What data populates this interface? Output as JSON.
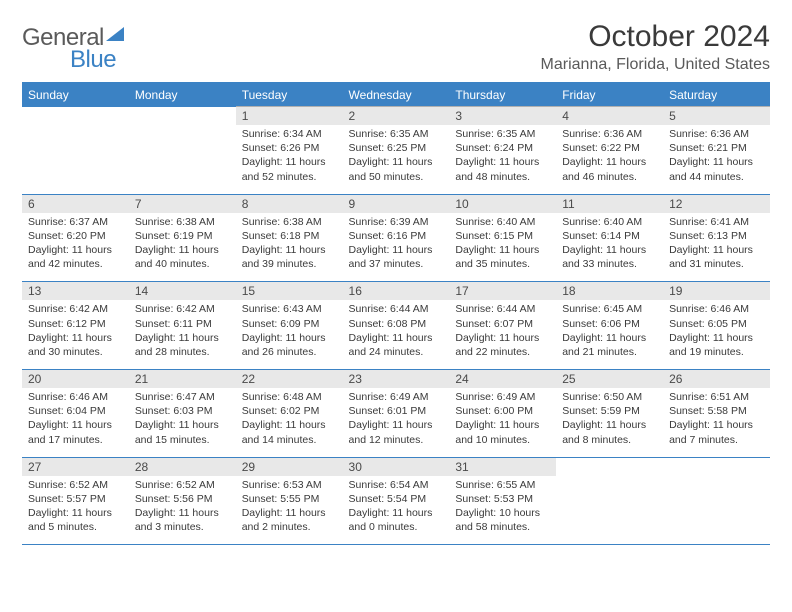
{
  "logo": {
    "text1": "General",
    "text2": "Blue"
  },
  "title": "October 2024",
  "location": "Marianna, Florida, United States",
  "colors": {
    "header_bg": "#3b82c4",
    "header_text": "#ffffff",
    "daynum_bg": "#e8e8e8",
    "border": "#3b82c4"
  },
  "daynames": [
    "Sunday",
    "Monday",
    "Tuesday",
    "Wednesday",
    "Thursday",
    "Friday",
    "Saturday"
  ],
  "weeks": [
    {
      "nums": [
        "",
        "",
        "1",
        "2",
        "3",
        "4",
        "5"
      ],
      "cells": [
        null,
        null,
        {
          "sunrise": "Sunrise: 6:34 AM",
          "sunset": "Sunset: 6:26 PM",
          "daylight": "Daylight: 11 hours and 52 minutes."
        },
        {
          "sunrise": "Sunrise: 6:35 AM",
          "sunset": "Sunset: 6:25 PM",
          "daylight": "Daylight: 11 hours and 50 minutes."
        },
        {
          "sunrise": "Sunrise: 6:35 AM",
          "sunset": "Sunset: 6:24 PM",
          "daylight": "Daylight: 11 hours and 48 minutes."
        },
        {
          "sunrise": "Sunrise: 6:36 AM",
          "sunset": "Sunset: 6:22 PM",
          "daylight": "Daylight: 11 hours and 46 minutes."
        },
        {
          "sunrise": "Sunrise: 6:36 AM",
          "sunset": "Sunset: 6:21 PM",
          "daylight": "Daylight: 11 hours and 44 minutes."
        }
      ]
    },
    {
      "nums": [
        "6",
        "7",
        "8",
        "9",
        "10",
        "11",
        "12"
      ],
      "cells": [
        {
          "sunrise": "Sunrise: 6:37 AM",
          "sunset": "Sunset: 6:20 PM",
          "daylight": "Daylight: 11 hours and 42 minutes."
        },
        {
          "sunrise": "Sunrise: 6:38 AM",
          "sunset": "Sunset: 6:19 PM",
          "daylight": "Daylight: 11 hours and 40 minutes."
        },
        {
          "sunrise": "Sunrise: 6:38 AM",
          "sunset": "Sunset: 6:18 PM",
          "daylight": "Daylight: 11 hours and 39 minutes."
        },
        {
          "sunrise": "Sunrise: 6:39 AM",
          "sunset": "Sunset: 6:16 PM",
          "daylight": "Daylight: 11 hours and 37 minutes."
        },
        {
          "sunrise": "Sunrise: 6:40 AM",
          "sunset": "Sunset: 6:15 PM",
          "daylight": "Daylight: 11 hours and 35 minutes."
        },
        {
          "sunrise": "Sunrise: 6:40 AM",
          "sunset": "Sunset: 6:14 PM",
          "daylight": "Daylight: 11 hours and 33 minutes."
        },
        {
          "sunrise": "Sunrise: 6:41 AM",
          "sunset": "Sunset: 6:13 PM",
          "daylight": "Daylight: 11 hours and 31 minutes."
        }
      ]
    },
    {
      "nums": [
        "13",
        "14",
        "15",
        "16",
        "17",
        "18",
        "19"
      ],
      "cells": [
        {
          "sunrise": "Sunrise: 6:42 AM",
          "sunset": "Sunset: 6:12 PM",
          "daylight": "Daylight: 11 hours and 30 minutes."
        },
        {
          "sunrise": "Sunrise: 6:42 AM",
          "sunset": "Sunset: 6:11 PM",
          "daylight": "Daylight: 11 hours and 28 minutes."
        },
        {
          "sunrise": "Sunrise: 6:43 AM",
          "sunset": "Sunset: 6:09 PM",
          "daylight": "Daylight: 11 hours and 26 minutes."
        },
        {
          "sunrise": "Sunrise: 6:44 AM",
          "sunset": "Sunset: 6:08 PM",
          "daylight": "Daylight: 11 hours and 24 minutes."
        },
        {
          "sunrise": "Sunrise: 6:44 AM",
          "sunset": "Sunset: 6:07 PM",
          "daylight": "Daylight: 11 hours and 22 minutes."
        },
        {
          "sunrise": "Sunrise: 6:45 AM",
          "sunset": "Sunset: 6:06 PM",
          "daylight": "Daylight: 11 hours and 21 minutes."
        },
        {
          "sunrise": "Sunrise: 6:46 AM",
          "sunset": "Sunset: 6:05 PM",
          "daylight": "Daylight: 11 hours and 19 minutes."
        }
      ]
    },
    {
      "nums": [
        "20",
        "21",
        "22",
        "23",
        "24",
        "25",
        "26"
      ],
      "cells": [
        {
          "sunrise": "Sunrise: 6:46 AM",
          "sunset": "Sunset: 6:04 PM",
          "daylight": "Daylight: 11 hours and 17 minutes."
        },
        {
          "sunrise": "Sunrise: 6:47 AM",
          "sunset": "Sunset: 6:03 PM",
          "daylight": "Daylight: 11 hours and 15 minutes."
        },
        {
          "sunrise": "Sunrise: 6:48 AM",
          "sunset": "Sunset: 6:02 PM",
          "daylight": "Daylight: 11 hours and 14 minutes."
        },
        {
          "sunrise": "Sunrise: 6:49 AM",
          "sunset": "Sunset: 6:01 PM",
          "daylight": "Daylight: 11 hours and 12 minutes."
        },
        {
          "sunrise": "Sunrise: 6:49 AM",
          "sunset": "Sunset: 6:00 PM",
          "daylight": "Daylight: 11 hours and 10 minutes."
        },
        {
          "sunrise": "Sunrise: 6:50 AM",
          "sunset": "Sunset: 5:59 PM",
          "daylight": "Daylight: 11 hours and 8 minutes."
        },
        {
          "sunrise": "Sunrise: 6:51 AM",
          "sunset": "Sunset: 5:58 PM",
          "daylight": "Daylight: 11 hours and 7 minutes."
        }
      ]
    },
    {
      "nums": [
        "27",
        "28",
        "29",
        "30",
        "31",
        "",
        ""
      ],
      "cells": [
        {
          "sunrise": "Sunrise: 6:52 AM",
          "sunset": "Sunset: 5:57 PM",
          "daylight": "Daylight: 11 hours and 5 minutes."
        },
        {
          "sunrise": "Sunrise: 6:52 AM",
          "sunset": "Sunset: 5:56 PM",
          "daylight": "Daylight: 11 hours and 3 minutes."
        },
        {
          "sunrise": "Sunrise: 6:53 AM",
          "sunset": "Sunset: 5:55 PM",
          "daylight": "Daylight: 11 hours and 2 minutes."
        },
        {
          "sunrise": "Sunrise: 6:54 AM",
          "sunset": "Sunset: 5:54 PM",
          "daylight": "Daylight: 11 hours and 0 minutes."
        },
        {
          "sunrise": "Sunrise: 6:55 AM",
          "sunset": "Sunset: 5:53 PM",
          "daylight": "Daylight: 10 hours and 58 minutes."
        },
        null,
        null
      ]
    }
  ]
}
